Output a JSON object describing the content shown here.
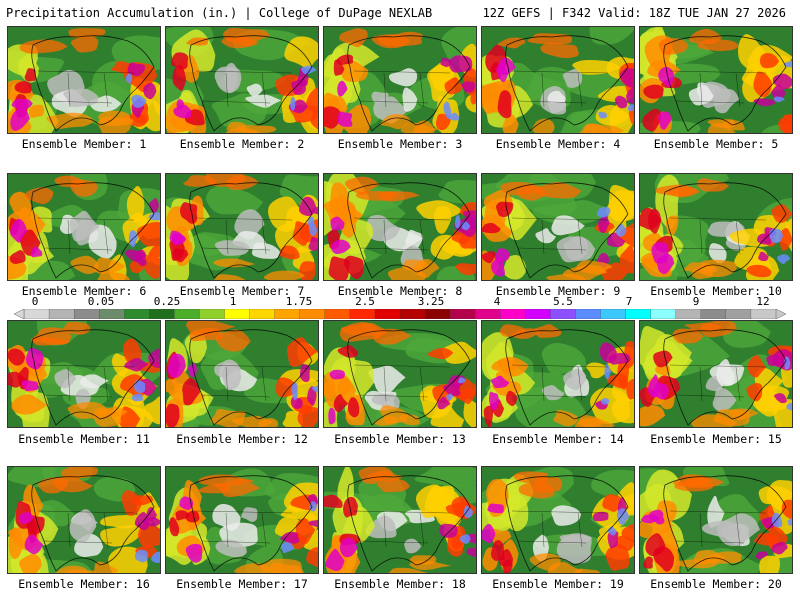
{
  "header": {
    "title": "Precipitation Accumulation (in.) | College of DuPage NEXLAB",
    "run_info": "12Z GEFS | F342 Valid: 18Z TUE JAN 27 2026"
  },
  "legend": {
    "labels": [
      "0",
      "0.05",
      "0.25",
      "1",
      "1.75",
      "2.5",
      "3.25",
      "4",
      "5.5",
      "7",
      "9",
      "12"
    ],
    "colors": [
      "#d8d8d8",
      "#b4b4b4",
      "#8c8c8c",
      "#6c8c6c",
      "#2e8b2e",
      "#1f6f1f",
      "#4cad2a",
      "#8fd12a",
      "#ffff00",
      "#ffd700",
      "#ffa500",
      "#ff8c00",
      "#ff5a00",
      "#ff2800",
      "#e00000",
      "#b40000",
      "#8b0000",
      "#b4004b",
      "#e0008c",
      "#ff00c8",
      "#d200ff",
      "#8c50ff",
      "#5a8cff",
      "#3cc8ff",
      "#00ffff",
      "#8cffff",
      "#b4b4b4",
      "#8c8c8c",
      "#a0a0a0",
      "#c8c8c8"
    ]
  },
  "panels": [
    {
      "label": "Ensemble Member: 1"
    },
    {
      "label": "Ensemble Member: 2"
    },
    {
      "label": "Ensemble Member: 3"
    },
    {
      "label": "Ensemble Member: 4"
    },
    {
      "label": "Ensemble Member: 5"
    },
    {
      "label": "Ensemble Member: 6"
    },
    {
      "label": "Ensemble Member: 7"
    },
    {
      "label": "Ensemble Member: 8"
    },
    {
      "label": "Ensemble Member: 9"
    },
    {
      "label": "Ensemble Member: 10"
    },
    {
      "label": "Ensemble Member: 11"
    },
    {
      "label": "Ensemble Member: 12"
    },
    {
      "label": "Ensemble Member: 13"
    },
    {
      "label": "Ensemble Member: 14"
    },
    {
      "label": "Ensemble Member: 15"
    },
    {
      "label": "Ensemble Member: 16"
    },
    {
      "label": "Ensemble Member: 17"
    },
    {
      "label": "Ensemble Member: 18"
    },
    {
      "label": "Ensemble Member: 19"
    },
    {
      "label": "Ensemble Member: 20"
    }
  ]
}
